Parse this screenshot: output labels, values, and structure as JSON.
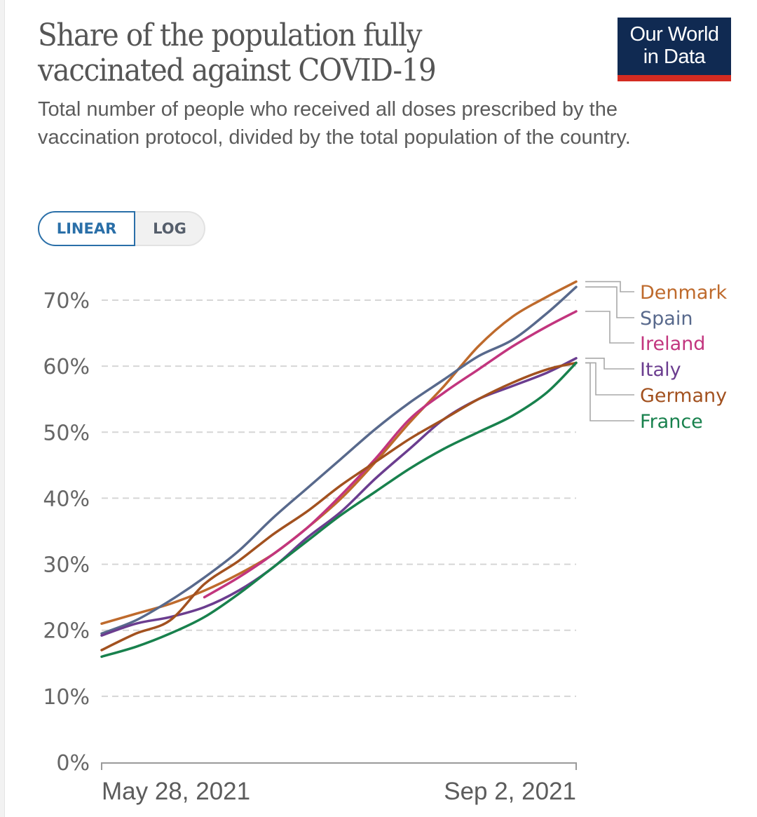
{
  "header": {
    "title": "Share of the population fully vaccinated against COVID-19",
    "title_line1": "Share of the population fully",
    "title_line2": "vaccinated against COVID-19",
    "subtitle": "Total number of people who received all doses prescribed by the vaccination protocol, divided by the total population of the country.",
    "logo_line1": "Our World",
    "logo_line2": "in Data"
  },
  "colors": {
    "logo_bg": "#102a52",
    "logo_accent": "#d42b21",
    "toggle_active": "#2a6fa8"
  },
  "scale_toggle": {
    "options": [
      "LINEAR",
      "LOG"
    ],
    "selected": "LINEAR"
  },
  "chart_data": {
    "type": "line",
    "title": "Share of the population fully vaccinated against COVID-19",
    "xlabel": "",
    "ylabel": "",
    "x_start": "2021-05-28",
    "x_end": "2021-09-02",
    "x_tick_labels": [
      "May 28, 2021",
      "Sep 2, 2021"
    ],
    "y_ticks": [
      0,
      10,
      20,
      30,
      40,
      50,
      60,
      70
    ],
    "y_tick_labels": [
      "0%",
      "10%",
      "20%",
      "30%",
      "40%",
      "50%",
      "60%",
      "70%"
    ],
    "ylim": [
      0,
      70
    ],
    "xlim_days": [
      0,
      97
    ],
    "grid": "horizontal dashed",
    "legend": "right (line-end labels)",
    "x_days": [
      0,
      7,
      14,
      21,
      28,
      35,
      42,
      49,
      56,
      63,
      70,
      77,
      84,
      91,
      97
    ],
    "series": [
      {
        "name": "Denmark",
        "color": "#be6a2c",
        "values": [
          21.0,
          22.5,
          24.0,
          26.0,
          28.5,
          31.5,
          35.5,
          40.0,
          45.5,
          51.5,
          57.0,
          63.0,
          67.5,
          70.5,
          72.8
        ]
      },
      {
        "name": "Spain",
        "color": "#58698c",
        "values": [
          19.5,
          21.5,
          24.5,
          28.0,
          32.0,
          37.0,
          41.5,
          46.0,
          50.5,
          54.5,
          58.0,
          61.5,
          64.0,
          68.0,
          72.0
        ]
      },
      {
        "name": "Ireland",
        "color": "#c2357e",
        "values": [
          null,
          null,
          null,
          25.0,
          28.0,
          31.5,
          35.5,
          40.5,
          46.0,
          52.0,
          56.0,
          59.5,
          63.0,
          66.0,
          68.3
        ]
      },
      {
        "name": "Italy",
        "color": "#6b3d8f",
        "values": [
          19.2,
          21.0,
          22.0,
          23.5,
          26.0,
          29.5,
          34.0,
          38.0,
          43.0,
          47.5,
          52.0,
          55.0,
          57.0,
          59.0,
          61.2
        ]
      },
      {
        "name": "Germany",
        "color": "#a2511f",
        "values": [
          17.0,
          19.5,
          21.5,
          27.0,
          30.5,
          34.5,
          38.0,
          42.0,
          45.5,
          49.0,
          52.0,
          55.0,
          57.5,
          59.5,
          60.5
        ]
      },
      {
        "name": "France",
        "color": "#18814d",
        "values": [
          16.0,
          17.5,
          19.5,
          22.0,
          25.5,
          29.5,
          33.5,
          37.5,
          41.0,
          44.5,
          47.5,
          50.0,
          52.5,
          56.0,
          60.5
        ]
      }
    ]
  }
}
